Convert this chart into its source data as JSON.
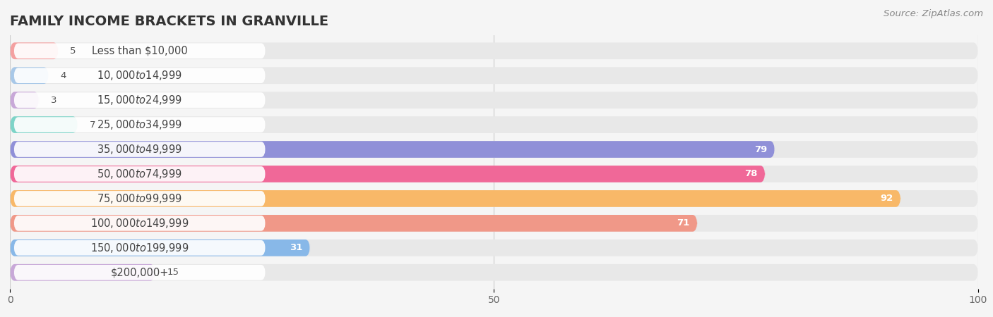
{
  "title": "FAMILY INCOME BRACKETS IN GRANVILLE",
  "source": "Source: ZipAtlas.com",
  "categories": [
    "Less than $10,000",
    "$10,000 to $14,999",
    "$15,000 to $24,999",
    "$25,000 to $34,999",
    "$35,000 to $49,999",
    "$50,000 to $74,999",
    "$75,000 to $99,999",
    "$100,000 to $149,999",
    "$150,000 to $199,999",
    "$200,000+"
  ],
  "values": [
    5,
    4,
    3,
    7,
    79,
    78,
    92,
    71,
    31,
    15
  ],
  "bar_colors": [
    "#f4a0a0",
    "#a8c8e8",
    "#c8a8d8",
    "#7dd4c8",
    "#9090d8",
    "#f06898",
    "#f8b868",
    "#f09888",
    "#88b8e8",
    "#c8a8d8"
  ],
  "xlim": [
    0,
    100
  ],
  "xticks": [
    0,
    50,
    100
  ],
  "background_color": "#f5f5f5",
  "bar_bg_color": "#e8e8e8",
  "row_bg_color": "#f0f0f0",
  "title_fontsize": 14,
  "label_fontsize": 10.5,
  "value_fontsize": 9.5,
  "source_fontsize": 9.5
}
